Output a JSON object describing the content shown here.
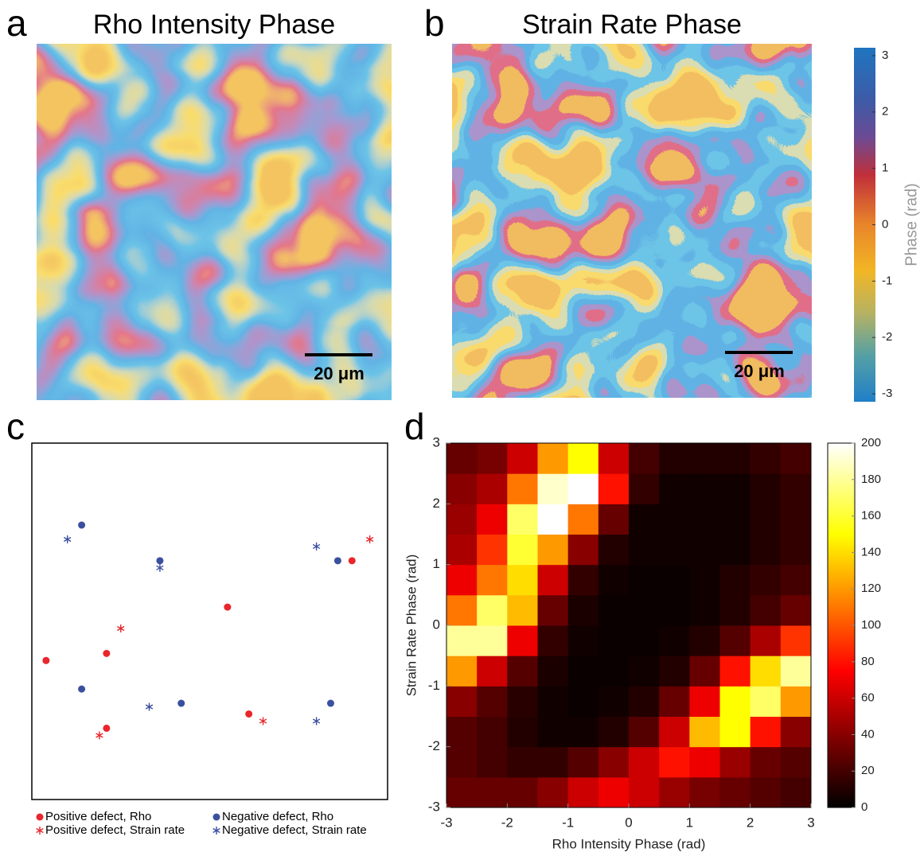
{
  "chart_data": [
    {
      "type": "image",
      "panel": "a",
      "title": "Rho Intensity Phase",
      "scale_bar": "20 μm"
    },
    {
      "type": "image",
      "panel": "b",
      "title": "Strain Rate Phase",
      "scale_bar": "20 μm",
      "colorbar": {
        "label": "Phase (rad)",
        "lim": [
          -3.14,
          3.14
        ],
        "ticks": [
          -3,
          -2,
          -1,
          0,
          1,
          2,
          3
        ]
      }
    },
    {
      "type": "scatter",
      "panel": "c",
      "xlim": [
        0,
        100
      ],
      "ylim": [
        0,
        100
      ],
      "series": [
        {
          "name": "Positive defect, Rho",
          "color": "#e8262b",
          "marker": "dot",
          "x": [
            4,
            21,
            21,
            55,
            61,
            90
          ],
          "y": [
            39,
            41,
            20,
            54,
            24,
            67
          ]
        },
        {
          "name": "Negative defect, Rho",
          "color": "#3b4fa0",
          "marker": "dot",
          "x": [
            14,
            36,
            14,
            42,
            86,
            84
          ],
          "y": [
            77,
            67,
            31,
            27,
            67,
            27
          ]
        },
        {
          "name": "Positive defect, Strain rate",
          "color": "#e8262b",
          "marker": "star",
          "x": [
            95,
            25,
            19,
            65
          ],
          "y": [
            73,
            48,
            18,
            22
          ]
        },
        {
          "name": "Negative defect, Strain rate",
          "color": "#3b4fa0",
          "marker": "star",
          "x": [
            10,
            36,
            80,
            33,
            80
          ],
          "y": [
            73,
            65,
            71,
            26,
            22
          ]
        }
      ]
    },
    {
      "type": "heatmap",
      "panel": "d",
      "xlabel": "Rho Intensity Phase (rad)",
      "ylabel": "Strain Rate Phase (rad)",
      "xlim": [
        -3,
        3
      ],
      "ylim": [
        -3,
        3
      ],
      "xticks": [
        -3,
        -2,
        -1,
        0,
        1,
        2,
        3
      ],
      "yticks": [
        -3,
        -2,
        -1,
        0,
        1,
        2,
        3
      ],
      "xbins": [
        -3,
        -2.5,
        -2,
        -1.5,
        -1,
        -0.5,
        0,
        0.5,
        1,
        1.5,
        2,
        2.5,
        3
      ],
      "ybins": [
        -3,
        -2.5,
        -2,
        -1.5,
        -1,
        -0.5,
        0,
        0.5,
        1,
        1.5,
        2,
        2.5,
        3
      ],
      "values": [
        [
          30,
          30,
          30,
          40,
          60,
          70,
          60,
          45,
          35,
          30,
          25,
          20
        ],
        [
          25,
          20,
          15,
          15,
          25,
          40,
          60,
          80,
          70,
          45,
          30,
          25
        ],
        [
          25,
          20,
          10,
          5,
          5,
          10,
          25,
          60,
          130,
          150,
          80,
          40
        ],
        [
          40,
          25,
          12,
          5,
          3,
          5,
          10,
          30,
          70,
          150,
          170,
          120
        ],
        [
          120,
          60,
          25,
          8,
          3,
          3,
          5,
          10,
          30,
          80,
          140,
          180
        ],
        [
          180,
          180,
          70,
          15,
          5,
          3,
          3,
          5,
          10,
          25,
          50,
          90
        ],
        [
          110,
          170,
          130,
          30,
          8,
          3,
          3,
          3,
          5,
          10,
          20,
          30
        ],
        [
          70,
          110,
          140,
          60,
          15,
          5,
          3,
          3,
          5,
          10,
          15,
          20
        ],
        [
          50,
          90,
          160,
          120,
          40,
          10,
          5,
          5,
          5,
          5,
          10,
          15
        ],
        [
          45,
          70,
          170,
          200,
          110,
          30,
          5,
          5,
          5,
          5,
          10,
          15
        ],
        [
          40,
          50,
          110,
          190,
          200,
          80,
          15,
          5,
          5,
          5,
          10,
          15
        ],
        [
          30,
          35,
          60,
          120,
          150,
          60,
          20,
          10,
          10,
          10,
          15,
          20
        ]
      ],
      "colormap": "hot",
      "colorbar": {
        "lim": [
          0,
          200
        ],
        "ticks": [
          0,
          20,
          40,
          60,
          80,
          100,
          120,
          140,
          160,
          180,
          200
        ]
      }
    }
  ]
}
